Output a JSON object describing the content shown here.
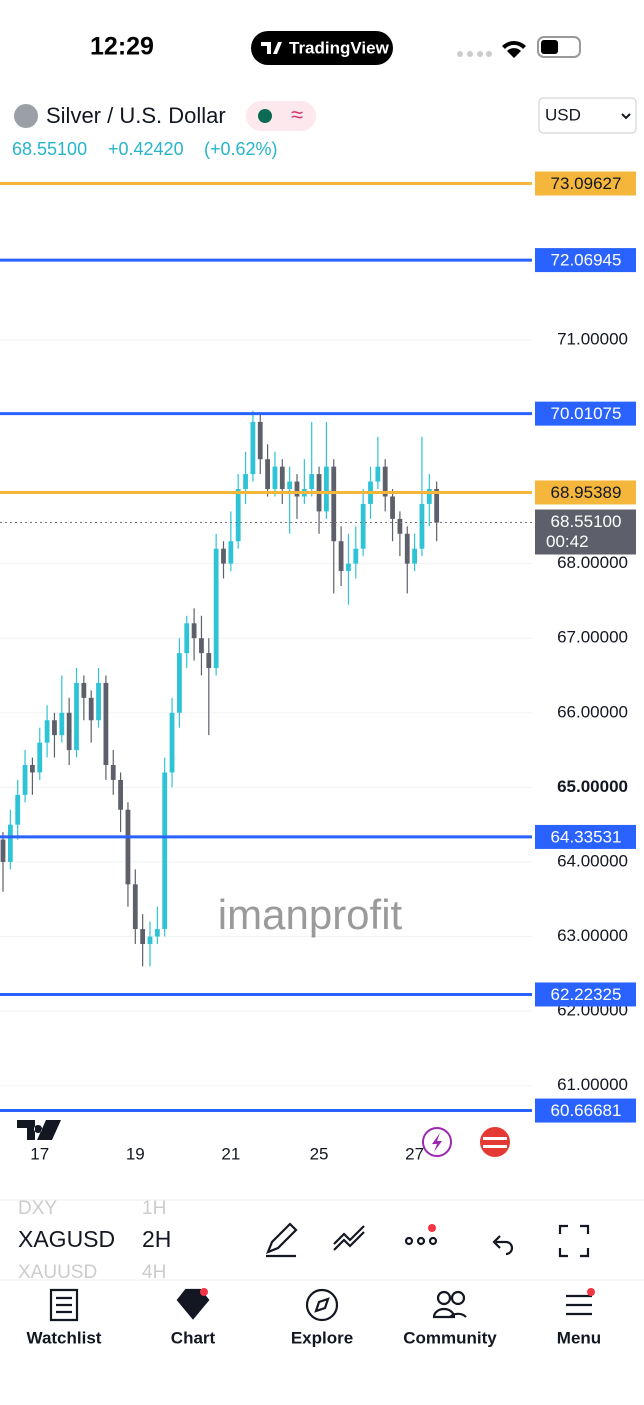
{
  "status": {
    "time": "12:29",
    "app": "TradingView"
  },
  "header": {
    "symbol": "Silver / U.S. Dollar",
    "last": "68.55100",
    "change": "+0.42420",
    "change_pct": "(+0.62%)",
    "currency": "USD"
  },
  "chart_data": {
    "type": "candlestick",
    "watermark": "imanprofit",
    "up_color": "#2ec4d6",
    "down_color": "#5d606b",
    "ylim": [
      60.54,
      74.35
    ],
    "yticks": [
      {
        "value": 61,
        "label": "61.00000"
      },
      {
        "value": 62,
        "label": "62.00000"
      },
      {
        "value": 63,
        "label": "63.00000"
      },
      {
        "value": 64,
        "label": "64.00000"
      },
      {
        "value": 65,
        "label": "65.00000"
      },
      {
        "value": 66,
        "label": "66.00000"
      },
      {
        "value": 67,
        "label": "67.00000"
      },
      {
        "value": 68,
        "label": "68.00000"
      },
      {
        "value": 71,
        "label": "71.00000"
      }
    ],
    "xticks": [
      {
        "value": 5,
        "label": "17"
      },
      {
        "value": 18,
        "label": "19"
      },
      {
        "value": 31,
        "label": "21"
      },
      {
        "value": 43,
        "label": "25"
      },
      {
        "value": 56,
        "label": "27"
      }
    ],
    "levels": [
      {
        "value": 73.09627,
        "color": "#f5b73b"
      },
      {
        "value": 72.06945,
        "color": "#2962ff"
      },
      {
        "value": 70.01075,
        "color": "#2962ff"
      },
      {
        "value": 68.95389,
        "color": "#f5b73b"
      },
      {
        "value": 64.33531,
        "color": "#2962ff"
      },
      {
        "value": 62.22325,
        "color": "#2962ff"
      },
      {
        "value": 60.66681,
        "color": "#2962ff"
      }
    ],
    "last_price": {
      "value": 68.551,
      "label": "68.55100"
    },
    "countdown": "00:42",
    "ohlc": [
      [
        64.3,
        64.4,
        63.6,
        64.0
      ],
      [
        64.0,
        64.7,
        63.9,
        64.5
      ],
      [
        64.5,
        65.1,
        64.3,
        64.9
      ],
      [
        64.9,
        65.5,
        64.8,
        65.3
      ],
      [
        65.3,
        65.4,
        64.9,
        65.2
      ],
      [
        65.2,
        65.8,
        65.1,
        65.6
      ],
      [
        65.6,
        66.1,
        65.4,
        65.9
      ],
      [
        65.9,
        66.0,
        65.4,
        65.7
      ],
      [
        65.7,
        66.5,
        65.6,
        66.0
      ],
      [
        66.0,
        66.2,
        65.3,
        65.5
      ],
      [
        65.5,
        66.6,
        65.4,
        66.4
      ],
      [
        66.4,
        66.5,
        65.9,
        66.2
      ],
      [
        66.2,
        66.3,
        65.6,
        65.9
      ],
      [
        65.9,
        66.6,
        65.8,
        66.4
      ],
      [
        66.4,
        66.5,
        65.1,
        65.3
      ],
      [
        65.3,
        65.5,
        64.9,
        65.1
      ],
      [
        65.1,
        65.2,
        64.4,
        64.7
      ],
      [
        64.7,
        64.8,
        63.4,
        63.7
      ],
      [
        63.7,
        63.9,
        62.9,
        63.1
      ],
      [
        63.1,
        63.3,
        62.6,
        62.9
      ],
      [
        62.9,
        63.2,
        62.6,
        63.0
      ],
      [
        63.0,
        63.4,
        62.9,
        63.1
      ],
      [
        63.1,
        65.4,
        63.0,
        65.2
      ],
      [
        65.2,
        66.2,
        65.0,
        66.0
      ],
      [
        66.0,
        67.0,
        65.8,
        66.8
      ],
      [
        66.8,
        67.3,
        66.6,
        67.2
      ],
      [
        67.2,
        67.4,
        66.7,
        67.0
      ],
      [
        67.0,
        67.3,
        66.5,
        66.8
      ],
      [
        66.8,
        67.0,
        65.7,
        66.6
      ],
      [
        66.6,
        68.4,
        66.5,
        68.2
      ],
      [
        68.2,
        68.3,
        67.8,
        68.0
      ],
      [
        68.0,
        68.7,
        67.9,
        68.3
      ],
      [
        68.3,
        69.2,
        68.2,
        69.0
      ],
      [
        69.0,
        69.5,
        68.8,
        69.2
      ],
      [
        69.2,
        70.05,
        69.1,
        69.9
      ],
      [
        69.9,
        70.0,
        69.2,
        69.4
      ],
      [
        69.4,
        69.6,
        68.9,
        69.0
      ],
      [
        69.0,
        69.5,
        68.9,
        69.3
      ],
      [
        69.3,
        69.4,
        68.8,
        69.0
      ],
      [
        69.0,
        69.3,
        68.4,
        69.1
      ],
      [
        69.1,
        69.2,
        68.6,
        68.9
      ],
      [
        68.9,
        69.4,
        68.8,
        69.0
      ],
      [
        69.0,
        69.9,
        68.9,
        69.2
      ],
      [
        69.2,
        69.3,
        68.4,
        68.7
      ],
      [
        68.7,
        69.9,
        68.6,
        69.3
      ],
      [
        69.3,
        69.4,
        67.6,
        68.3
      ],
      [
        68.3,
        68.5,
        67.7,
        67.9
      ],
      [
        67.9,
        68.4,
        67.45,
        68.0
      ],
      [
        68.0,
        68.5,
        67.8,
        68.2
      ],
      [
        68.2,
        69.0,
        68.1,
        68.8
      ],
      [
        68.8,
        69.3,
        68.6,
        69.1
      ],
      [
        69.1,
        69.7,
        69.0,
        69.3
      ],
      [
        69.3,
        69.4,
        68.7,
        68.9
      ],
      [
        68.9,
        69.0,
        68.3,
        68.6
      ],
      [
        68.6,
        68.7,
        68.1,
        68.4
      ],
      [
        68.4,
        68.5,
        67.6,
        68.0
      ],
      [
        68.0,
        68.4,
        67.9,
        68.2
      ],
      [
        68.2,
        69.7,
        68.1,
        68.8
      ],
      [
        68.8,
        69.2,
        68.5,
        69.0
      ],
      [
        69.0,
        69.1,
        68.3,
        68.55
      ]
    ]
  },
  "toolbar": {
    "symbols": [
      "DXY",
      "XAGUSD",
      "XAUUSD"
    ],
    "intervals": [
      "1H",
      "2H",
      "4H"
    ]
  },
  "nav": [
    "Watchlist",
    "Chart",
    "Explore",
    "Community",
    "Menu"
  ]
}
